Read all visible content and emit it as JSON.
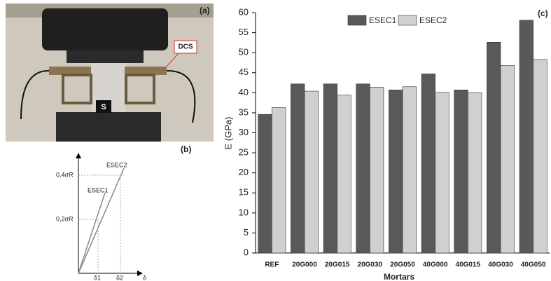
{
  "figure": {
    "photo": {
      "panel_label": "(a)",
      "dcs_label": "DCS",
      "s_label": "S"
    },
    "diagram": {
      "panel_label": "(b)",
      "y_upper": "0,4σR",
      "y_lower": "0,2σR",
      "line_upper": "ESEC2",
      "line_lower": "ESEC1",
      "x_axis": "δ",
      "x_first": "δ1",
      "x_second": "δ2"
    }
  },
  "chart_data": {
    "type": "bar",
    "panel_label": "(c)",
    "x_label": "Mortars",
    "y_label": "E (GPa)",
    "categories": [
      "REF",
      "20G000",
      "20G015",
      "20G030",
      "20G050",
      "40G000",
      "40G015",
      "40G030",
      "40G050"
    ],
    "series": [
      {
        "name": "ESEC1",
        "color": "#595959",
        "values": [
          34.6,
          42.2,
          42.2,
          42.2,
          40.7,
          44.7,
          40.7,
          52.6,
          58.1
        ]
      },
      {
        "name": "ESEC2",
        "color": "#d0d0d0",
        "values": [
          36.3,
          40.4,
          39.4,
          41.4,
          41.5,
          40.1,
          40.0,
          46.8,
          48.3
        ]
      }
    ],
    "ylim": [
      0,
      60
    ],
    "yticks": [
      0,
      5,
      10,
      15,
      20,
      25,
      30,
      35,
      40,
      45,
      50,
      55,
      60
    ]
  }
}
